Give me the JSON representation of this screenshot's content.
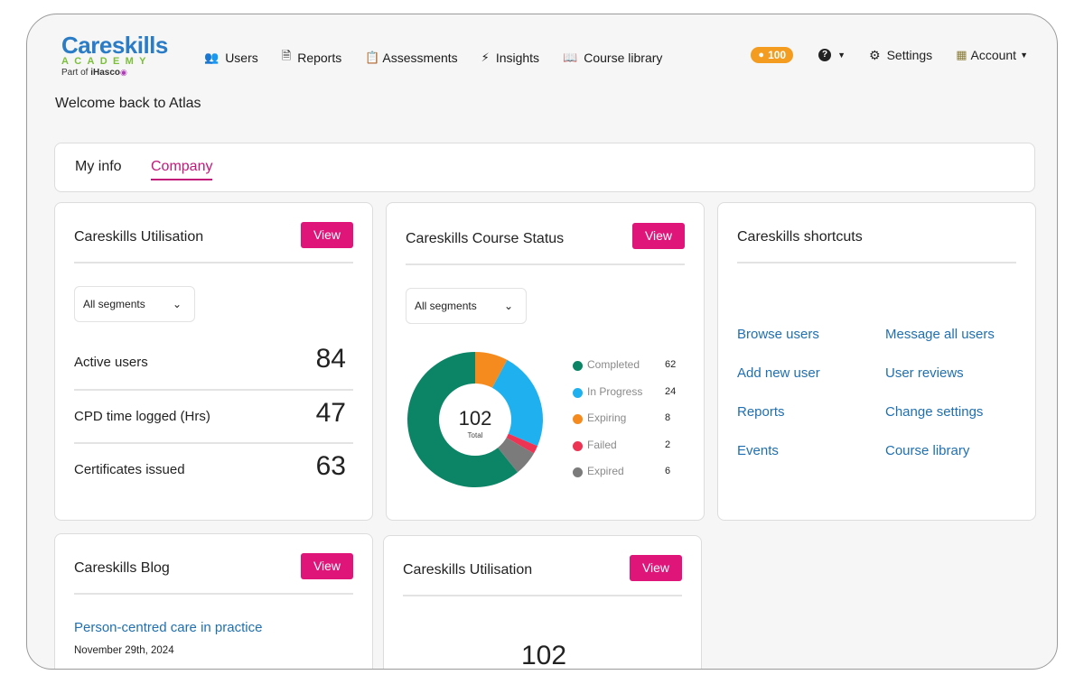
{
  "logo": {
    "brand": "Careskills",
    "academy": "ACADEMY",
    "part_of_prefix": "Part of",
    "part_of_brand": "iHasco"
  },
  "nav": {
    "items": [
      {
        "label": "Users",
        "icon": "users-icon"
      },
      {
        "label": "Reports",
        "icon": "reports-icon"
      },
      {
        "label": "Assessments",
        "icon": "assessments-icon"
      },
      {
        "label": "Insights",
        "icon": "bolt-icon"
      },
      {
        "label": "Course library",
        "icon": "course-library-icon"
      }
    ],
    "credits": "100",
    "settings_label": "Settings",
    "account_label": "Account"
  },
  "welcome": "Welcome back to Atlas",
  "tabs": {
    "my_info": "My info",
    "company": "Company"
  },
  "utilisation": {
    "title": "Careskills Utilisation",
    "view": "View",
    "segment": "All segments",
    "stats": [
      {
        "label": "Active users",
        "value": "84"
      },
      {
        "label": "CPD time logged (Hrs)",
        "value": "47"
      },
      {
        "label": "Certificates issued",
        "value": "63"
      }
    ]
  },
  "course_status": {
    "title": "Careskills Course Status",
    "view": "View",
    "segment": "All segments",
    "total": "102",
    "total_label": "Total",
    "legend": [
      {
        "name": "Completed",
        "value": "62",
        "color": "#0c8566"
      },
      {
        "name": "In Progress",
        "value": "24",
        "color": "#1fb1ef"
      },
      {
        "name": "Expiring",
        "value": "8",
        "color": "#f58b1f"
      },
      {
        "name": "Failed",
        "value": "2",
        "color": "#ee3455"
      },
      {
        "name": "Expired",
        "value": "6",
        "color": "#7b7b7b"
      }
    ]
  },
  "chart_data": {
    "type": "pie",
    "categories": [
      "Expiring",
      "In Progress",
      "Failed",
      "Expired",
      "Completed"
    ],
    "values": [
      8,
      24,
      2,
      6,
      62
    ],
    "colors": [
      "#f58b1f",
      "#1fb1ef",
      "#ee3455",
      "#7b7b7b",
      "#0c8566"
    ],
    "center_value": "102",
    "center_label": "Total"
  },
  "shortcuts": {
    "title": "Careskills shortcuts",
    "left": [
      "Browse users",
      "Add new user",
      "Reports",
      "Events"
    ],
    "right": [
      "Message all users",
      "User reviews",
      "Change settings",
      "Course library"
    ]
  },
  "blog": {
    "title": "Careskills Blog",
    "view": "View",
    "post_title": "Person-centred care in practice",
    "post_date": "November 29th, 2024"
  },
  "utilisation2": {
    "title": "Careskills Utilisation",
    "view": "View",
    "value": "102"
  }
}
